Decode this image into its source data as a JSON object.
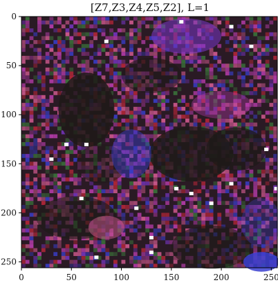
{
  "chart_data": {
    "type": "heatmap",
    "title": "[Z7,Z3,Z4,Z5,Z2], L=1",
    "xlabel": "",
    "ylabel": "",
    "image_size": [
      256,
      256
    ],
    "xlim": [
      0,
      256
    ],
    "ylim": [
      256,
      0
    ],
    "x_ticks": [
      0,
      50,
      100,
      150,
      200,
      250
    ],
    "y_ticks": [
      0,
      50,
      100,
      150,
      200,
      250
    ],
    "grid": false,
    "colors": {
      "background": "#2a1a24",
      "magenta": "#c23fb6",
      "pink": "#e0609a",
      "blue": "#3a3fd0",
      "violet": "#7a36c8",
      "red": "#c0283a",
      "green": "#3c7a3c",
      "dark_region": "#1e1a18",
      "white_spot": "#ffffff"
    }
  }
}
